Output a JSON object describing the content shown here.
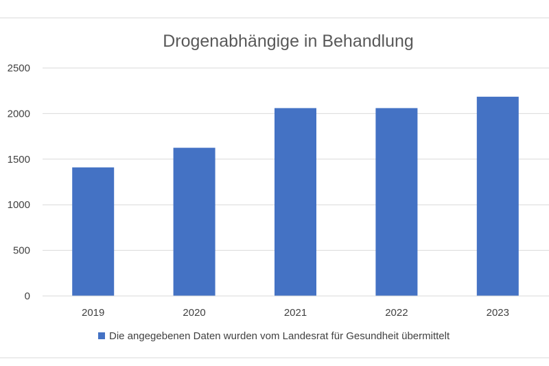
{
  "chart_data": {
    "type": "bar",
    "title": "Drogenabhängige in Behandlung",
    "categories": [
      "2019",
      "2020",
      "2021",
      "2022",
      "2023"
    ],
    "series": [
      {
        "name": "Die angegebenen Daten wurden vom Landesrat für Gesundheit übermittelt",
        "values": [
          1410,
          1625,
          2060,
          2060,
          2185
        ],
        "color": "#4472C4"
      }
    ],
    "ylim": [
      0,
      2500
    ],
    "yticks": [
      0,
      500,
      1000,
      1500,
      2000,
      2500
    ],
    "xlabel": "",
    "ylabel": "",
    "grid": true,
    "legend_position": "bottom"
  },
  "colors": {
    "gridline": "#D9D9D9",
    "border": "#D9D9D9",
    "title": "#595959",
    "tick_label": "#404040"
  }
}
